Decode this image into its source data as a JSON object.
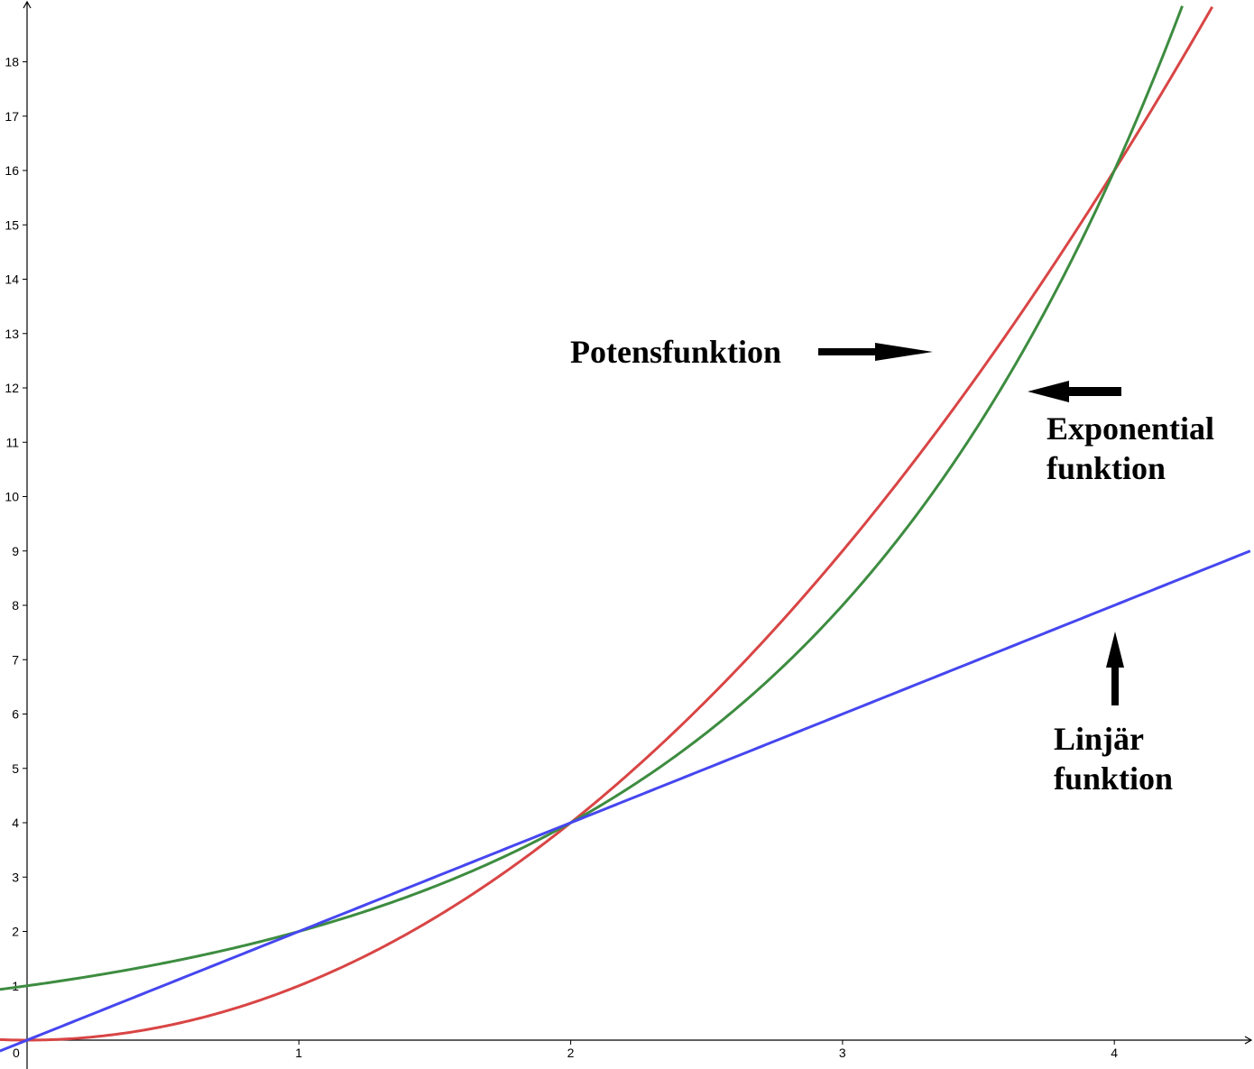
{
  "chart_data": {
    "type": "line",
    "title": "",
    "xlabel": "",
    "ylabel": "",
    "xlim": [
      -0.1,
      4.5
    ],
    "ylim": [
      -0.5,
      19.3
    ],
    "grid": false,
    "x_ticks": [
      "0",
      "1",
      "2",
      "3",
      "4"
    ],
    "y_ticks": [
      "1",
      "2",
      "3",
      "4",
      "5",
      "6",
      "7",
      "8",
      "9",
      "10",
      "11",
      "12",
      "13",
      "14",
      "15",
      "16",
      "17",
      "18"
    ],
    "series": [
      {
        "name": "Potensfunktion",
        "color": "#d94545",
        "x": [
          -0.1,
          0,
          0.5,
          1,
          1.5,
          2,
          2.5,
          3,
          3.5,
          4,
          4.36
        ],
        "y": [
          0.01,
          0,
          0.25,
          1,
          2.25,
          4,
          6.25,
          9,
          12.25,
          16,
          19.0
        ]
      },
      {
        "name": "Exponential funktion",
        "color": "#3d8c40",
        "x": [
          -0.1,
          0,
          0.5,
          1,
          1.5,
          2,
          2.5,
          3,
          3.5,
          4,
          4.25
        ],
        "y": [
          0.93,
          1,
          1.41,
          2,
          2.83,
          4,
          5.66,
          8,
          11.31,
          16,
          19.0
        ]
      },
      {
        "name": "Linjär funktion",
        "color": "#4646f0",
        "x": [
          -0.1,
          0,
          1,
          2,
          3,
          4,
          4.5
        ],
        "y": [
          -0.2,
          0,
          2,
          4,
          6,
          8,
          9
        ]
      }
    ],
    "annotations": [
      {
        "lines": [
          "Potensfunktion"
        ],
        "arrow": "right"
      },
      {
        "lines": [
          "Exponential",
          "funktion"
        ],
        "arrow": "left"
      },
      {
        "lines": [
          "Linjär",
          "funktion"
        ],
        "arrow": "up"
      }
    ]
  }
}
